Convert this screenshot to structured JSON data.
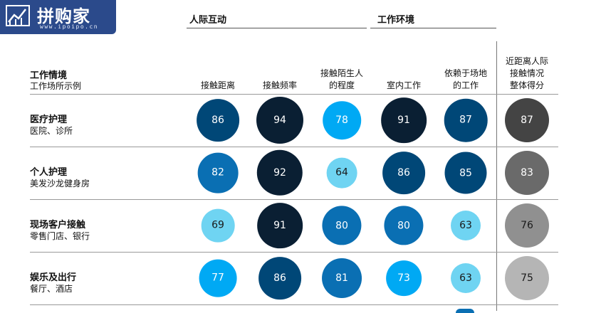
{
  "logo": {
    "text": "拼购家",
    "sub": "www.ipoipo.cn"
  },
  "groups": [
    {
      "title": "人际互动"
    },
    {
      "title": "工作环境"
    }
  ],
  "header": {
    "title": "工作情境",
    "subtitle": "工作场所示例"
  },
  "columns": [
    {
      "label": "接触距离"
    },
    {
      "label": "接触频率"
    },
    {
      "label": "接触陌生人\n的程度"
    },
    {
      "label": "室内工作"
    },
    {
      "label": "依赖于场地\n的工作"
    },
    {
      "label": "近距离人际\n接触情况\n整体得分"
    }
  ],
  "chart_data": {
    "type": "table",
    "rows": [
      {
        "title": "医疗护理",
        "subtitle": "医院、诊所",
        "values": [
          86,
          94,
          78,
          91,
          87,
          87
        ]
      },
      {
        "title": "个人护理",
        "subtitle": "美发沙龙健身房",
        "values": [
          82,
          92,
          64,
          86,
          85,
          83
        ]
      },
      {
        "title": "现场客户接触",
        "subtitle": "零售门店、银行",
        "values": [
          69,
          91,
          80,
          80,
          63,
          76
        ]
      },
      {
        "title": "娱乐及出行",
        "subtitle": "餐厅、酒店",
        "values": [
          77,
          86,
          81,
          73,
          63,
          75
        ]
      }
    ],
    "colors": {
      "blue": [
        "#6fd4f2",
        "#00a9f4",
        "#0a6fb3",
        "#004777",
        "#0a1f33"
      ],
      "gray": [
        "#b5b5b5",
        "#909090",
        "#6a6a6a",
        "#444444"
      ]
    }
  }
}
